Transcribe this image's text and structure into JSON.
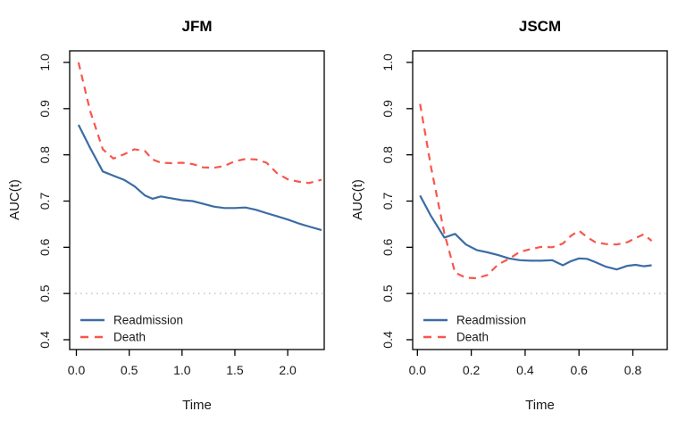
{
  "colors": {
    "readmission": "#3B6CA5",
    "death": "#F8564B",
    "reference_line": "#B8B8B8",
    "axis": "#000000",
    "text": "#1A1A1A"
  },
  "chart_data": [
    {
      "type": "line",
      "title": "JFM",
      "xlabel": "Time",
      "ylabel": "AUC(t)",
      "xlim": [
        0.0,
        2.4
      ],
      "ylim": [
        0.4,
        1.0
      ],
      "grid": false,
      "legend_position": "bottom-left",
      "xticks": [
        "0.0",
        "0.5",
        "1.0",
        "1.5",
        "2.0"
      ],
      "xtick_values": [
        0.0,
        0.5,
        1.0,
        1.5,
        2.0
      ],
      "yticks": [
        "0.4",
        "0.5",
        "0.6",
        "0.7",
        "0.8",
        "0.9",
        "1.0"
      ],
      "ytick_values": [
        0.4,
        0.5,
        0.6,
        0.7,
        0.8,
        0.9,
        1.0
      ],
      "reference_line": {
        "y": 0.5,
        "style": "dotted"
      },
      "x": [
        0.02,
        0.13,
        0.25,
        0.35,
        0.45,
        0.55,
        0.65,
        0.72,
        0.8,
        0.9,
        1.0,
        1.1,
        1.2,
        1.3,
        1.4,
        1.5,
        1.6,
        1.7,
        1.8,
        1.9,
        2.0,
        2.1,
        2.2,
        2.32
      ],
      "series": [
        {
          "name": "Readmission",
          "color_key": "readmission",
          "line_style": "solid",
          "values": [
            0.865,
            0.815,
            0.764,
            0.755,
            0.746,
            0.732,
            0.712,
            0.705,
            0.71,
            0.706,
            0.702,
            0.7,
            0.694,
            0.688,
            0.685,
            0.685,
            0.686,
            0.681,
            0.674,
            0.667,
            0.66,
            0.652,
            0.645,
            0.637
          ]
        },
        {
          "name": "Death",
          "color_key": "death",
          "line_style": "dashed",
          "values": [
            1.0,
            0.895,
            0.812,
            0.792,
            0.801,
            0.812,
            0.808,
            0.79,
            0.783,
            0.782,
            0.783,
            0.78,
            0.773,
            0.772,
            0.776,
            0.786,
            0.791,
            0.79,
            0.783,
            0.76,
            0.747,
            0.742,
            0.739,
            0.746
          ]
        }
      ]
    },
    {
      "type": "line",
      "title": "JSCM",
      "xlabel": "Time",
      "ylabel": "AUC(t)",
      "xlim": [
        0.0,
        0.9
      ],
      "ylim": [
        0.4,
        1.0
      ],
      "grid": false,
      "legend_position": "bottom-left",
      "xticks": [
        "0.0",
        "0.2",
        "0.4",
        "0.6",
        "0.8"
      ],
      "xtick_values": [
        0.0,
        0.2,
        0.4,
        0.6,
        0.8
      ],
      "yticks": [
        "0.4",
        "0.5",
        "0.6",
        "0.7",
        "0.8",
        "0.9",
        "1.0"
      ],
      "ytick_values": [
        0.4,
        0.5,
        0.6,
        0.7,
        0.8,
        0.9,
        1.0
      ],
      "reference_line": {
        "y": 0.5,
        "style": "dotted"
      },
      "x": [
        0.01,
        0.05,
        0.1,
        0.14,
        0.18,
        0.22,
        0.26,
        0.3,
        0.34,
        0.38,
        0.42,
        0.46,
        0.5,
        0.54,
        0.57,
        0.6,
        0.63,
        0.66,
        0.7,
        0.74,
        0.78,
        0.81,
        0.84,
        0.87
      ],
      "series": [
        {
          "name": "Readmission",
          "color_key": "readmission",
          "line_style": "solid",
          "values": [
            0.712,
            0.668,
            0.621,
            0.629,
            0.606,
            0.594,
            0.589,
            0.583,
            0.576,
            0.572,
            0.571,
            0.571,
            0.572,
            0.561,
            0.57,
            0.576,
            0.575,
            0.568,
            0.558,
            0.552,
            0.56,
            0.562,
            0.559,
            0.561
          ]
        },
        {
          "name": "Death",
          "color_key": "death",
          "line_style": "dashed",
          "values": [
            0.91,
            0.775,
            0.63,
            0.545,
            0.534,
            0.533,
            0.54,
            0.563,
            0.575,
            0.59,
            0.596,
            0.601,
            0.6,
            0.608,
            0.625,
            0.636,
            0.622,
            0.611,
            0.607,
            0.606,
            0.611,
            0.62,
            0.628,
            0.614
          ]
        }
      ]
    }
  ]
}
